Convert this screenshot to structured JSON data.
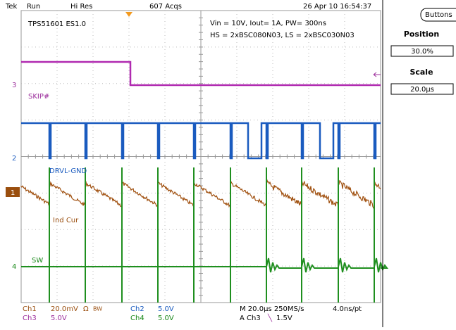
{
  "top_bar": {
    "brand": "Tek",
    "state": "Run",
    "mode": "Hi Res",
    "acquisitions": "607 Acqs",
    "datetime": "26 Apr 10 16:54:37"
  },
  "annotations": {
    "device": "TPS51601 ES1.0",
    "conditions": "Vin = 10V,  Iout= 1A,  PW= 300ns",
    "fets": "HS = 2xBSC080N03, LS = 2xBSC030N03"
  },
  "side_panel": {
    "button": "Buttons",
    "position_label": "Position",
    "position_value": "30.0%",
    "scale_label": "Scale",
    "scale_value": "20.0µs"
  },
  "traces": [
    {
      "marker": "3",
      "label": "SKIP#"
    },
    {
      "marker": "2",
      "label": "DRVL-GND"
    },
    {
      "marker": "1",
      "label": "Ind Cur"
    },
    {
      "marker": "4",
      "label": "SW"
    }
  ],
  "status": {
    "ch1": "Ch1",
    "ch1_scale": "20.0mV",
    "ch1_imp": "Ω",
    "ch1_bw": "BW",
    "ch2": "Ch2",
    "ch2_scale": "5.0V",
    "timebase": "M 20.0µs 250MS/s",
    "resolution": "4.0ns/pt",
    "ch3": "Ch3",
    "ch3_scale": "5.0V",
    "ch4": "Ch4",
    "ch4_scale": "5.0V",
    "trigger_source": "A Ch3",
    "trigger_slope": "╲",
    "trigger_level": "1.5V"
  }
}
